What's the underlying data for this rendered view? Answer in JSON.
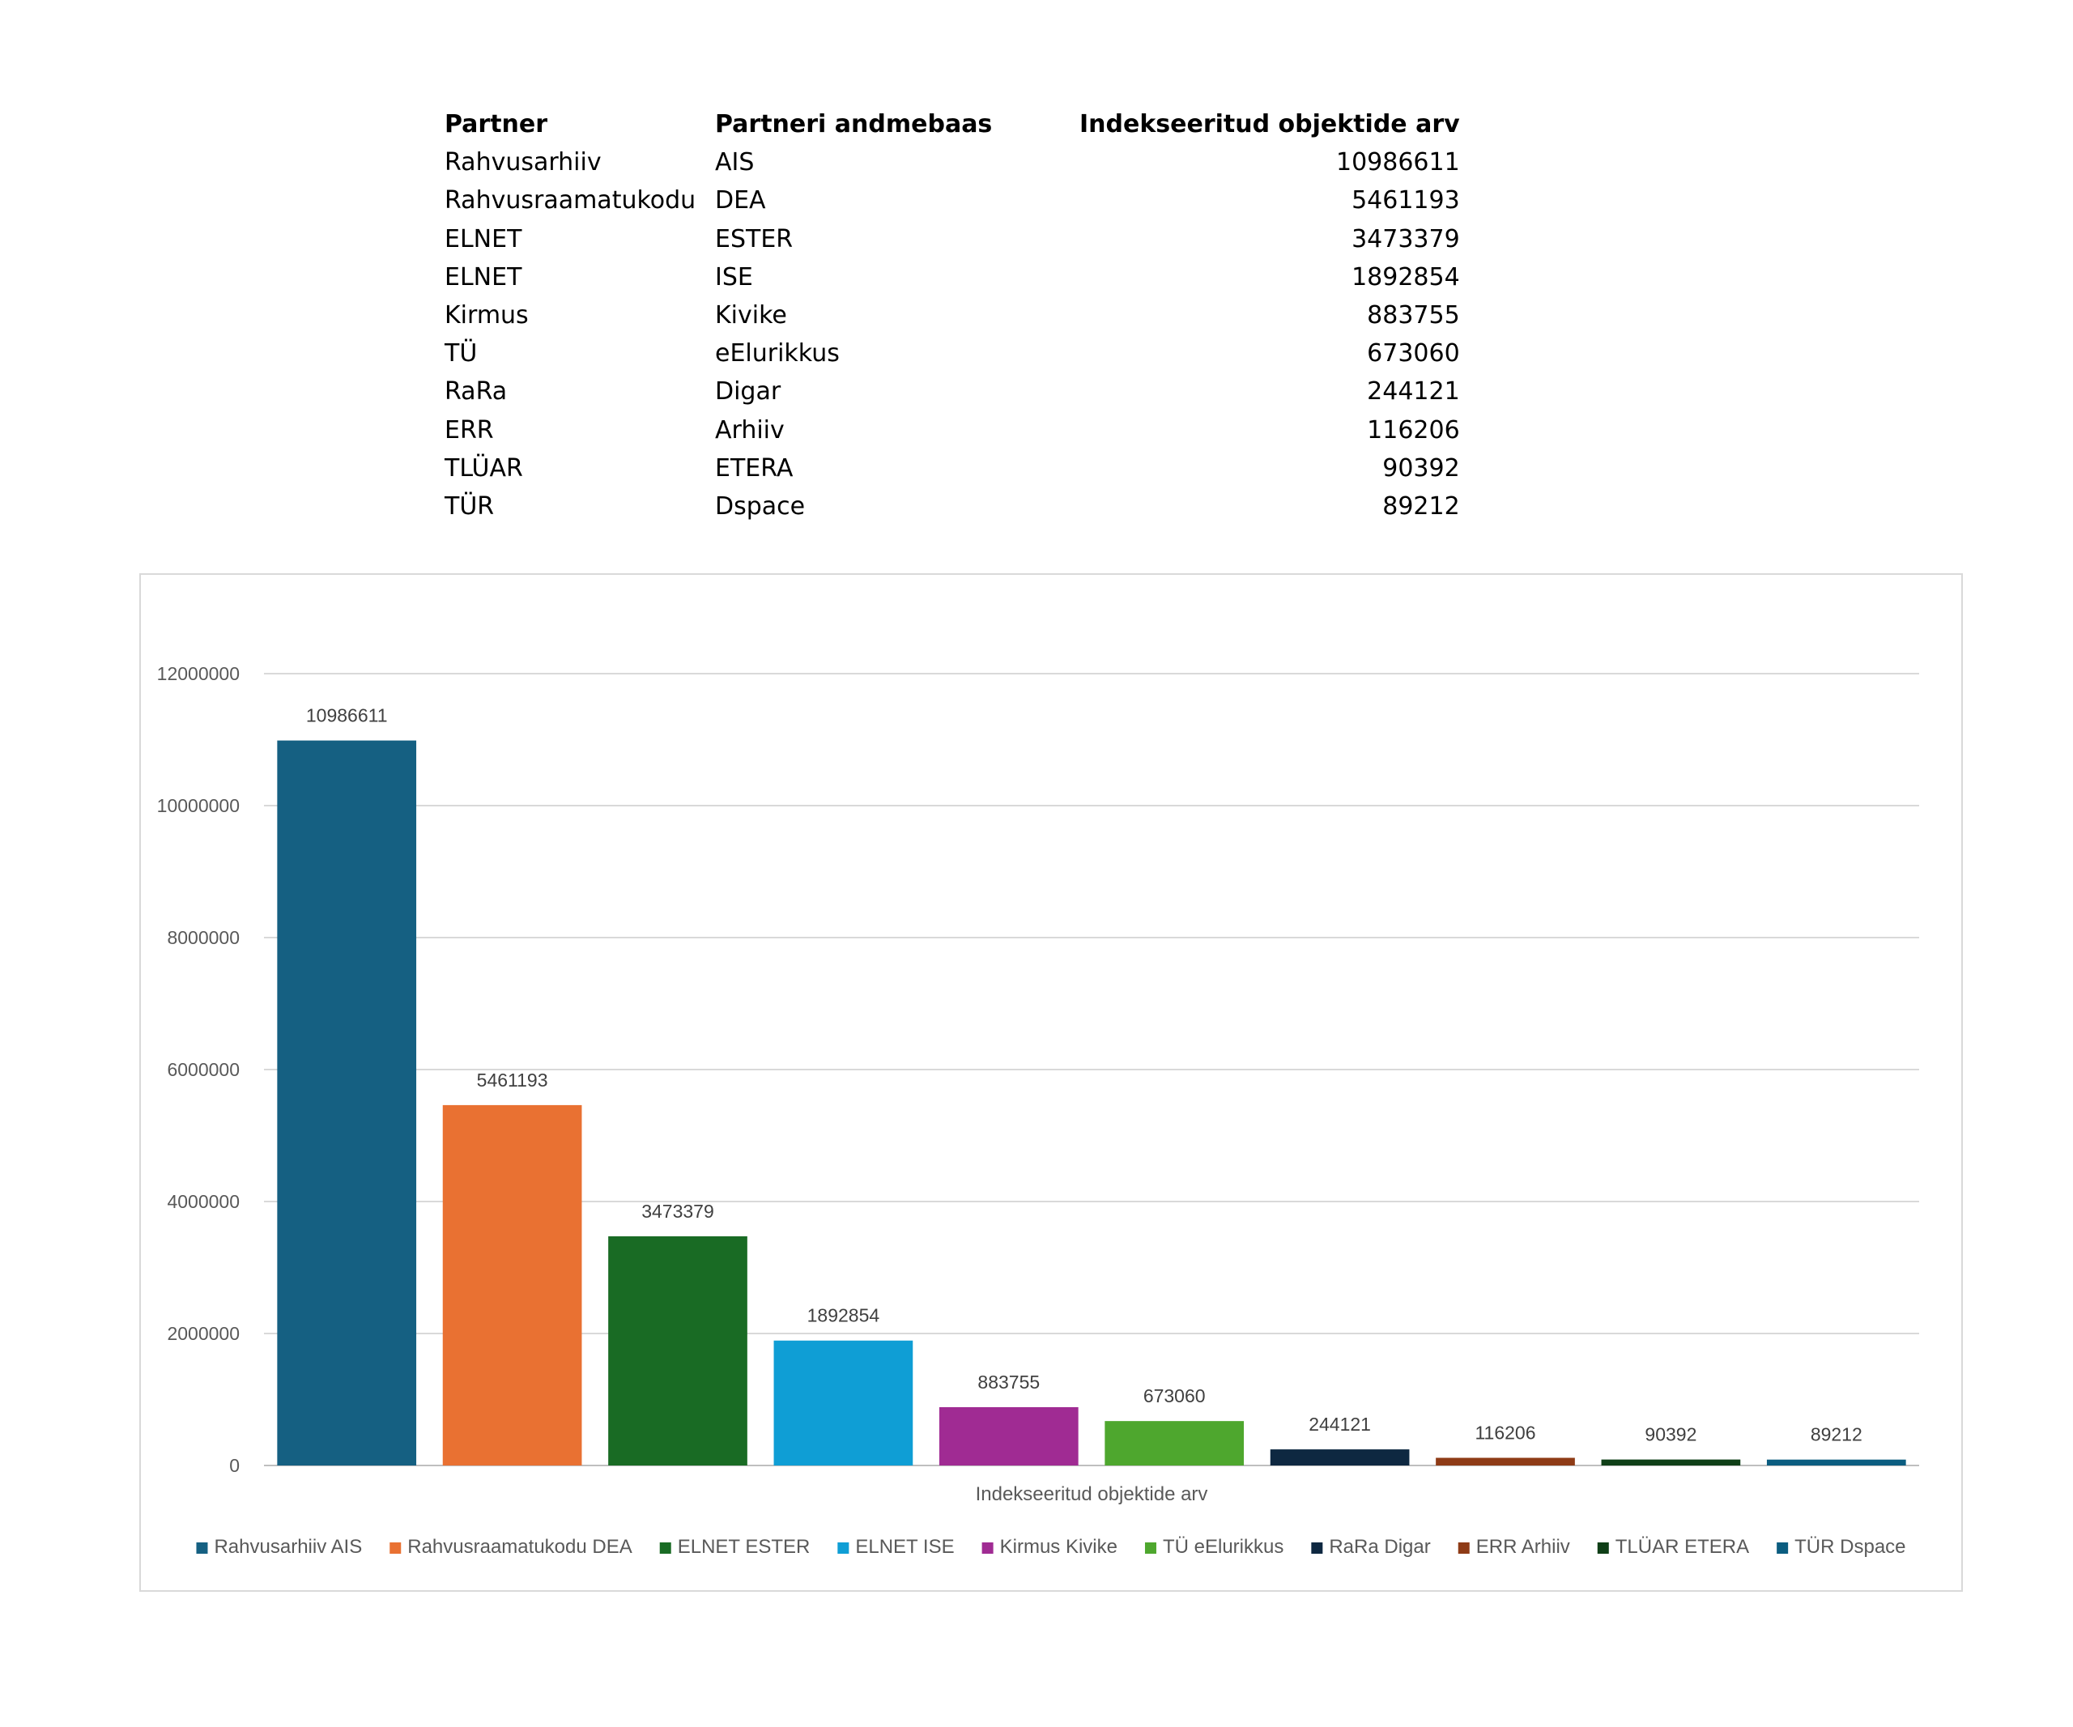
{
  "table": {
    "headers": [
      "Partner",
      "Partneri andmebaas",
      "Indekseeritud objektide arv"
    ],
    "rows": [
      [
        "Rahvusarhiiv",
        "AIS",
        "10986611"
      ],
      [
        "Rahvusraamatukodu",
        "DEA",
        "5461193"
      ],
      [
        "ELNET",
        "ESTER",
        "3473379"
      ],
      [
        "ELNET",
        "ISE",
        "1892854"
      ],
      [
        "Kirmus",
        "Kivike",
        "883755"
      ],
      [
        "TÜ",
        "eElurikkus",
        "673060"
      ],
      [
        "RaRa",
        "Digar",
        "244121"
      ],
      [
        "ERR",
        "Arhiiv",
        "116206"
      ],
      [
        "TLÜAR",
        "ETERA",
        "90392"
      ],
      [
        "TÜR",
        "Dspace",
        "89212"
      ]
    ]
  },
  "chart_data": {
    "type": "bar",
    "title": "",
    "xlabel": "Indekseeritud objektide arv",
    "ylabel": "",
    "ylim": [
      0,
      12000000
    ],
    "yticks": [
      0,
      2000000,
      4000000,
      6000000,
      8000000,
      10000000,
      12000000
    ],
    "ytick_labels": [
      "0",
      "2000000",
      "4000000",
      "6000000",
      "8000000",
      "10000000",
      "12000000"
    ],
    "grid": true,
    "legend_position": "bottom",
    "series": [
      {
        "name": "Rahvusarhiiv AIS",
        "value": 10986611,
        "color": "#156082"
      },
      {
        "name": "Rahvusraamatukodu DEA",
        "value": 5461193,
        "color": "#E97132"
      },
      {
        "name": "ELNET ESTER",
        "value": 3473379,
        "color": "#196B24"
      },
      {
        "name": "ELNET ISE",
        "value": 1892854,
        "color": "#0F9ED5"
      },
      {
        "name": "Kirmus Kivike",
        "value": 883755,
        "color": "#A02B93"
      },
      {
        "name": "TÜ eElurikkus",
        "value": 673060,
        "color": "#4EA72E"
      },
      {
        "name": "RaRa Digar",
        "value": 244121,
        "color": "#0E2841"
      },
      {
        "name": "ERR Arhiiv",
        "value": 116206,
        "color": "#8E3B16"
      },
      {
        "name": "TLÜAR ETERA",
        "value": 90392,
        "color": "#0F3F17"
      },
      {
        "name": "TÜR Dspace",
        "value": 89212,
        "color": "#0B5D80"
      }
    ]
  }
}
